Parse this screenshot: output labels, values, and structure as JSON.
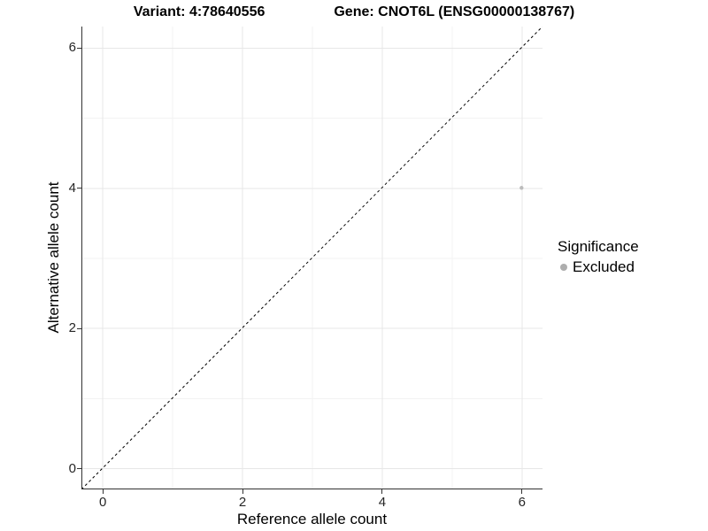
{
  "titles": {
    "variant": "Variant: 4:78640556",
    "gene": "Gene: CNOT6L (ENSG00000138767)"
  },
  "axes": {
    "x_label": "Reference allele count",
    "y_label": "Alternative allele count"
  },
  "legend": {
    "title": "Significance",
    "items": [
      {
        "label": "Excluded",
        "color": "#aeaeae"
      }
    ]
  },
  "colors": {
    "background": "#ffffff",
    "axis_line": "#333333",
    "tick_mark": "#333333",
    "tick_label": "#262626",
    "grid_major": "#e7e7e7",
    "grid_minor": "#f3f3f3",
    "reference_line": "#000000",
    "point": "#bcbcbc"
  },
  "chart_data": {
    "type": "scatter",
    "title": "Variant: 4:78640556    Gene: CNOT6L (ENSG00000138767)",
    "xlabel": "Reference allele count",
    "ylabel": "Alternative allele count",
    "xlim": [
      -0.3,
      6.3
    ],
    "ylim": [
      -0.3,
      6.3
    ],
    "x_ticks": [
      0,
      2,
      4,
      6
    ],
    "y_ticks": [
      0,
      2,
      4,
      6
    ],
    "x_minor_ticks": [
      1,
      3,
      5
    ],
    "y_minor_ticks": [
      1,
      3,
      5
    ],
    "grid": true,
    "legend_position": "right",
    "series": [
      {
        "name": "Excluded",
        "color": "#bcbcbc",
        "points": [
          {
            "x": 6,
            "y": 4
          }
        ]
      }
    ],
    "reference_line": {
      "type": "identity",
      "slope": 1,
      "intercept": 0,
      "style": "dashed",
      "color": "#000000"
    }
  }
}
